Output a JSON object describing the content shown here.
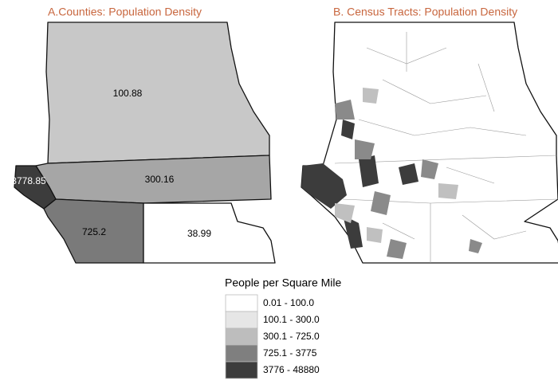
{
  "panels": [
    {
      "title": "A.Counties: Population Density",
      "regions": [
        {
          "label": 100.88,
          "color": "#c8c8c8"
        },
        {
          "label": 300.16,
          "color": "#a6a6a6"
        },
        {
          "label": 3778.85,
          "color": "#3c3c3c"
        },
        {
          "label": 725.2,
          "color": "#7a7a7a"
        },
        {
          "label": 38.99,
          "color": "#ffffff"
        }
      ]
    },
    {
      "title": "B. Census Tracts: Population Density"
    }
  ],
  "legend": {
    "title": "People per Square Mile",
    "entries": [
      {
        "label": "0.01 - 100.0",
        "color": "#ffffff"
      },
      {
        "label": "100.1 - 300.0",
        "color": "#e6e6e6"
      },
      {
        "label": "300.1 - 725.0",
        "color": "#bdbdbd"
      },
      {
        "label": "725.1 - 3775",
        "color": "#7f7f7f"
      },
      {
        "label": "3776 - 48880",
        "color": "#3c3c3c"
      }
    ]
  }
}
